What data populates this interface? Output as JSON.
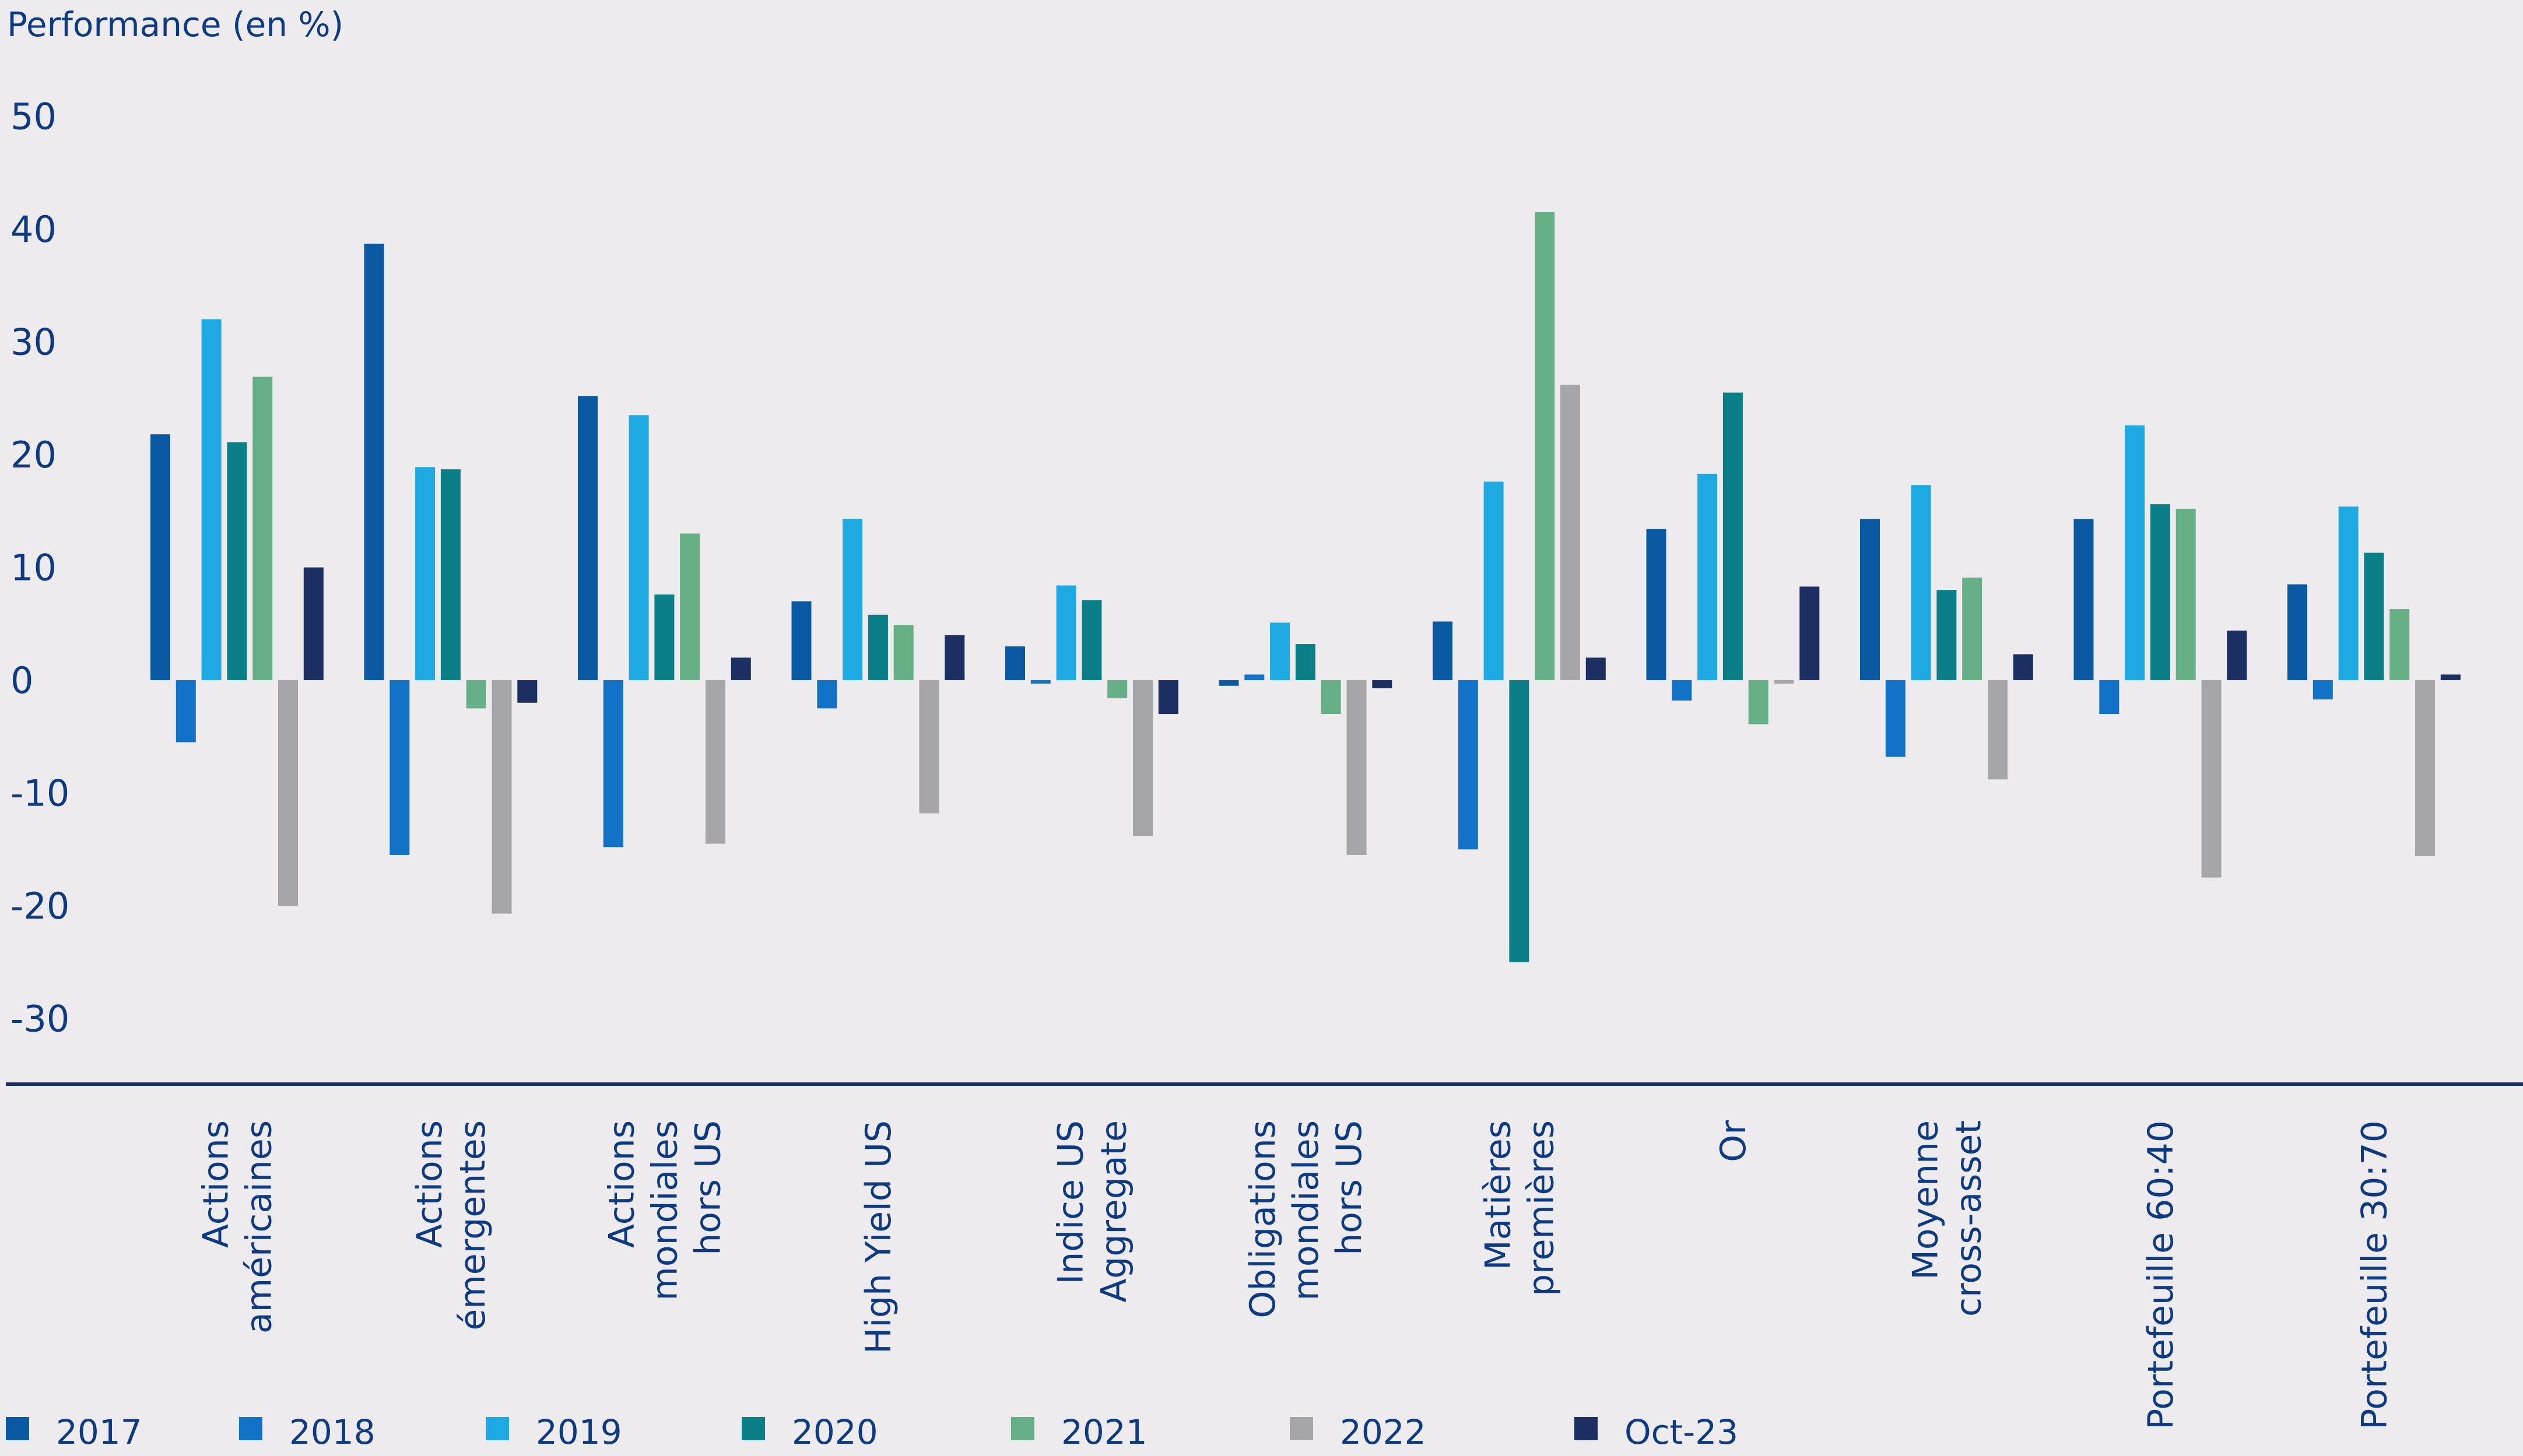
{
  "chart_data": {
    "type": "bar",
    "ylabel": "Performance (en %)",
    "ylim": [
      -30,
      50
    ],
    "yticks": [
      50,
      40,
      30,
      20,
      10,
      0,
      -10,
      -20,
      -30
    ],
    "grid": false,
    "legend_position": "bottom",
    "categories": [
      [
        "Actions",
        "américaines"
      ],
      [
        "Actions",
        "émergentes"
      ],
      [
        "Actions",
        "mondiales",
        "hors US"
      ],
      [
        "High Yield US"
      ],
      [
        "Indice US",
        "Aggregate"
      ],
      [
        "Obligations",
        "mondiales",
        "hors US"
      ],
      [
        "Matières",
        "premières"
      ],
      [
        "Or"
      ],
      [
        "Moyenne",
        "cross-asset"
      ],
      [
        "Portefeuille 60:40"
      ],
      [
        "Portefeuille 30:70"
      ]
    ],
    "series": [
      {
        "name": "2017",
        "color": "#0b5aa1",
        "values": [
          21.8,
          38.7,
          25.2,
          7.0,
          3.0,
          -0.5,
          5.2,
          13.4,
          14.3,
          14.3,
          8.5
        ]
      },
      {
        "name": "2018",
        "color": "#1273c6",
        "values": [
          -5.5,
          -15.5,
          -14.8,
          -2.5,
          -0.3,
          0.5,
          -15.0,
          -1.8,
          -6.8,
          -3.0,
          -1.7
        ]
      },
      {
        "name": "2019",
        "color": "#1ea9e3",
        "values": [
          32.0,
          18.9,
          23.5,
          14.3,
          8.4,
          5.1,
          17.6,
          18.3,
          17.3,
          22.6,
          15.4
        ]
      },
      {
        "name": "2020",
        "color": "#0b7f87",
        "values": [
          21.1,
          18.7,
          7.6,
          5.8,
          7.1,
          3.2,
          -25.0,
          25.5,
          8.0,
          15.6,
          11.3
        ]
      },
      {
        "name": "2021",
        "color": "#67af86",
        "values": [
          26.9,
          -2.5,
          13.0,
          4.9,
          -1.6,
          -3.0,
          41.5,
          -3.9,
          9.1,
          15.2,
          6.3
        ]
      },
      {
        "name": "2022",
        "color": "#a6a6aa",
        "values": [
          -20.0,
          -20.7,
          -14.5,
          -11.8,
          -13.8,
          -15.5,
          26.2,
          -0.3,
          -8.8,
          -17.5,
          -15.6
        ]
      },
      {
        "name": "Oct-23",
        "color": "#1c2f62",
        "values": [
          10.0,
          -2.0,
          2.0,
          4.0,
          -3.0,
          -0.7,
          2.0,
          8.3,
          2.3,
          4.4,
          0.5
        ]
      }
    ]
  }
}
